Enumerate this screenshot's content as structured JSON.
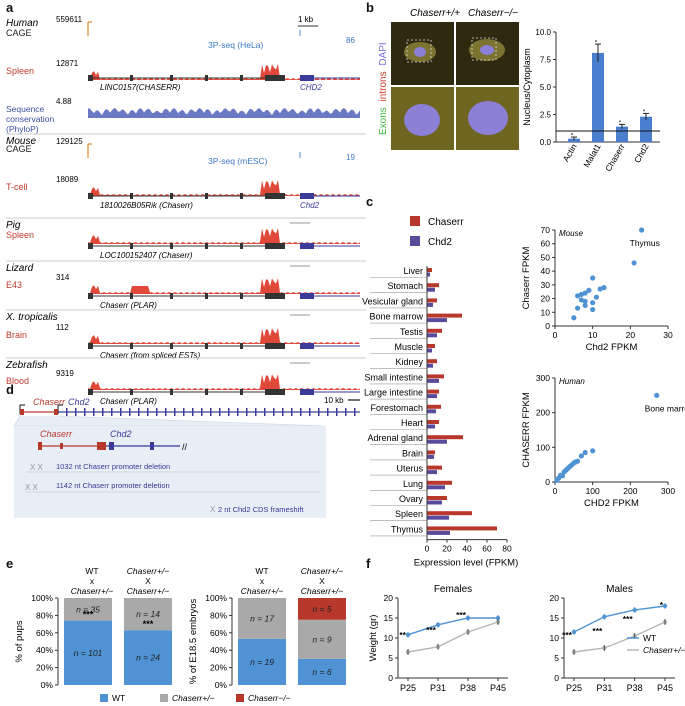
{
  "panel_a": {
    "letter": "a",
    "species": [
      {
        "name": "Human",
        "rows": [
          {
            "label": "CAGE",
            "scale": "559611",
            "kind": "cage"
          },
          {
            "label": "Spleen",
            "scale": "12871",
            "kind": "rna"
          },
          {
            "label": "Sequence conservation (PhyloP)",
            "scale": "4.88",
            "kind": "cons"
          }
        ],
        "annotations": [
          "1 kb",
          "3P-seq (HeLa)",
          "86"
        ],
        "gene_left": "LINC0157(CHASERR)",
        "gene_right": "CHD2"
      },
      {
        "name": "Mouse",
        "rows": [
          {
            "label": "CAGE",
            "scale": "129125",
            "kind": "cage"
          },
          {
            "label": "T-cell",
            "scale": "18089",
            "kind": "rna"
          }
        ],
        "annotations": [
          "3P-seq (mESC)",
          "19"
        ],
        "gene_left": "1810026B05Rik (Chaserr)",
        "gene_right": "Chd2"
      },
      {
        "name": "Pig",
        "rows": [
          {
            "label": "Spleen",
            "scale": "",
            "kind": "rna"
          }
        ],
        "annotations": [],
        "gene_left": "LOC100152407 (Chaserr)",
        "gene_right": ""
      },
      {
        "name": "Lizard",
        "rows": [
          {
            "label": "E43",
            "scale": "314",
            "kind": "rna"
          }
        ],
        "annotations": [],
        "gene_left": "Chaserr (PLAR)",
        "gene_right": ""
      },
      {
        "name": "X. tropicalis",
        "rows": [
          {
            "label": "Brain",
            "scale": "112",
            "kind": "rna"
          }
        ],
        "annotations": [],
        "gene_left": "Chaserr (from spliced ESTs)",
        "gene_right": ""
      },
      {
        "name": "Zebrafish",
        "rows": [
          {
            "label": "Blood",
            "scale": "9319",
            "kind": "rna"
          }
        ],
        "annotations": [],
        "gene_left": "Chaserr (PLAR)",
        "gene_right": ""
      }
    ]
  },
  "panel_b": {
    "letter": "b",
    "col_labels": [
      "Chaserr+/+",
      "Chaserr−/−"
    ],
    "stain_labels": [
      "Exons",
      "introns",
      "DAPI"
    ],
    "stain_colors": [
      "#3db83d",
      "#d23a2a",
      "#7a6fe0"
    ]
  },
  "panel_c": {
    "letter": "c"
  },
  "panel_d": {
    "letter": "d",
    "gene_left": "Chaserr",
    "gene_right": "Chd2",
    "scale": "10 kb",
    "notes": [
      "1032 nt Chaserr promoter deletion",
      "1142 nt Chaserr promoter deletion",
      "2 nt Chd2 CDS frameshift"
    ]
  },
  "panel_e": {
    "letter": "e",
    "left_cross": [
      "WT",
      "x",
      "Chaserr+/−"
    ],
    "right_cross": [
      "Chaserr+/−",
      "X",
      "Chaserr+/−"
    ],
    "left2_cross": [
      "WT",
      "x",
      "Chaserr+/−"
    ],
    "right2_cross": [
      "Chaserr+/−",
      "X",
      "Chaserr+/−"
    ],
    "legend": [
      "WT",
      "Chaserr+/−",
      "Chaserr−/−"
    ],
    "legend_colors": [
      "#4f93d4",
      "#a9a9a9",
      "#b8392c"
    ]
  },
  "panel_f": {
    "letter": "f"
  },
  "chart_data": [
    {
      "id": "b_bar",
      "type": "bar",
      "categories": [
        "Actin",
        "Malat1",
        "Chaserr",
        "Chd2"
      ],
      "values": [
        0.3,
        8.1,
        1.4,
        2.3
      ],
      "errors": [
        0.15,
        0.8,
        0.2,
        0.3
      ],
      "title": "",
      "xlabel": "",
      "ylabel": "Nucleus/Cytoplasm",
      "ylim": [
        0,
        10
      ],
      "yticks": [
        "0.0",
        "2.5",
        "5.0",
        "7.5",
        "10.0"
      ],
      "reference_line": 1.0,
      "color": "#4a7fcf"
    },
    {
      "id": "c_bar",
      "type": "bar",
      "orientation": "horizontal",
      "categories": [
        "Liver",
        "Stomach",
        "Vesicular gland",
        "Bone marrow",
        "Testis",
        "Muscle",
        "Kidney",
        "Small intestine",
        "Large intestine",
        "Forestomach",
        "Heart",
        "Adrenal gland",
        "Brain",
        "Uterus",
        "Lung",
        "Ovary",
        "Spleen",
        "Thymus"
      ],
      "series": [
        {
          "name": "Chaserr",
          "color": "#b8392c",
          "values": [
            5,
            12,
            10,
            35,
            15,
            8,
            10,
            17,
            12,
            14,
            12,
            36,
            8,
            15,
            25,
            20,
            45,
            70
          ]
        },
        {
          "name": "Chd2",
          "color": "#5a4a9c",
          "values": [
            3,
            8,
            6,
            20,
            10,
            5,
            6,
            12,
            10,
            9,
            8,
            20,
            7,
            10,
            18,
            15,
            22,
            23
          ]
        }
      ],
      "xlabel": "Expression level (FPKM)",
      "xticks": [
        "0",
        "20",
        "40",
        "60",
        "80"
      ],
      "xlim": [
        0,
        80
      ]
    },
    {
      "id": "c_scatter_mouse",
      "type": "scatter",
      "title": "Mouse",
      "xlabel": "Chd2 FPKM",
      "ylabel": "Chaserr FPKM",
      "xlim": [
        0,
        30
      ],
      "ylim": [
        0,
        70
      ],
      "xticks": [
        "0",
        "10",
        "20",
        "30"
      ],
      "yticks": [
        "0",
        "10",
        "20",
        "30",
        "40",
        "50",
        "60",
        "70"
      ],
      "points": [
        [
          5,
          6
        ],
        [
          6,
          13
        ],
        [
          6,
          22
        ],
        [
          7,
          19
        ],
        [
          7,
          23
        ],
        [
          8,
          15
        ],
        [
          8,
          24
        ],
        [
          8,
          18
        ],
        [
          9,
          26
        ],
        [
          10,
          12
        ],
        [
          10,
          17
        ],
        [
          11,
          21
        ],
        [
          12,
          27
        ],
        [
          13,
          28
        ],
        [
          10,
          35
        ],
        [
          21,
          46
        ],
        [
          23,
          70
        ]
      ],
      "annotation": {
        "label": "Thymus",
        "at": [
          23,
          70
        ]
      },
      "color": "#4f93d4"
    },
    {
      "id": "c_scatter_human",
      "type": "scatter",
      "title": "Human",
      "xlabel": "CHD2 FPKM",
      "ylabel": "CHASERR FPKM",
      "xlim": [
        0,
        300
      ],
      "ylim": [
        0,
        300
      ],
      "xticks": [
        "0",
        "100",
        "200",
        "300"
      ],
      "yticks": [
        "0",
        "100",
        "200",
        "300"
      ],
      "points": [
        [
          5,
          5
        ],
        [
          10,
          12
        ],
        [
          15,
          20
        ],
        [
          20,
          18
        ],
        [
          25,
          30
        ],
        [
          30,
          35
        ],
        [
          35,
          40
        ],
        [
          40,
          45
        ],
        [
          45,
          50
        ],
        [
          50,
          55
        ],
        [
          55,
          58
        ],
        [
          60,
          60
        ],
        [
          70,
          75
        ],
        [
          80,
          85
        ],
        [
          100,
          90
        ],
        [
          270,
          250
        ]
      ],
      "annotation": {
        "label": "Bone marrow",
        "at": [
          270,
          250
        ]
      },
      "color": "#4f93d4"
    },
    {
      "id": "e_pups",
      "type": "bar",
      "stacked": true,
      "ylabel": "% of pups",
      "ylim": [
        0,
        100
      ],
      "yticks": [
        "0%",
        "20%",
        "40%",
        "60%",
        "80%",
        "100%"
      ],
      "categories": [
        "WT x Chaserr+/−",
        "Chaserr+/− X Chaserr+/−"
      ],
      "series": [
        {
          "name": "WT",
          "color": "#4f93d4",
          "values": [
            74,
            63
          ],
          "labels": [
            "n = 101",
            "n = 24"
          ]
        },
        {
          "name": "Chaserr+/−",
          "color": "#a9a9a9",
          "values": [
            26,
            37
          ],
          "labels": [
            "n = 35",
            "n = 14"
          ]
        }
      ],
      "significance": [
        "***",
        "***"
      ]
    },
    {
      "id": "e_embryos",
      "type": "bar",
      "stacked": true,
      "ylabel": "% of E18.5 embryos",
      "ylim": [
        0,
        100
      ],
      "yticks": [
        "0%",
        "20%",
        "40%",
        "60%",
        "80%",
        "100%"
      ],
      "categories": [
        "WT x Chaserr+/−",
        "Chaserr+/− X Chaserr+/−"
      ],
      "series": [
        {
          "name": "WT",
          "color": "#4f93d4",
          "values": [
            53,
            30
          ],
          "labels": [
            "n = 19",
            "n = 6"
          ]
        },
        {
          "name": "Chaserr+/−",
          "color": "#a9a9a9",
          "values": [
            47,
            45
          ],
          "labels": [
            "n = 17",
            "n = 9"
          ]
        },
        {
          "name": "Chaserr−/−",
          "color": "#b8392c",
          "values": [
            0,
            25
          ],
          "labels": [
            "",
            "n = 5"
          ]
        }
      ]
    },
    {
      "id": "f_females",
      "type": "line",
      "title": "Females",
      "ylabel": "Weight (gr)",
      "categories": [
        "P25",
        "P31",
        "P38",
        "P45"
      ],
      "ylim": [
        0,
        20
      ],
      "yticks": [
        "0",
        "5",
        "10",
        "15",
        "20"
      ],
      "series": [
        {
          "name": "WT",
          "color": "#4f93d4",
          "values": [
            10.8,
            13.3,
            15,
            15
          ]
        },
        {
          "name": "Chaserr+/−",
          "color": "#b5b5b5",
          "values": [
            6.5,
            7.8,
            11.5,
            14
          ]
        }
      ],
      "significance": [
        "**",
        "***",
        "***",
        ""
      ]
    },
    {
      "id": "f_males",
      "type": "line",
      "title": "Males",
      "categories": [
        "P25",
        "P31",
        "P38",
        "P45"
      ],
      "ylim": [
        0,
        20
      ],
      "yticks": [
        "0",
        "5",
        "10",
        "15",
        "20"
      ],
      "series": [
        {
          "name": "WT",
          "color": "#4f93d4",
          "values": [
            11.5,
            15.3,
            17,
            18
          ]
        },
        {
          "name": "Chaserr+/−",
          "color": "#b5b5b5",
          "values": [
            6.5,
            7.5,
            10.5,
            14
          ]
        }
      ],
      "significance": [
        "***",
        "***",
        "***",
        "*"
      ],
      "legend": [
        "WT",
        "Chaserr+/−"
      ]
    }
  ]
}
